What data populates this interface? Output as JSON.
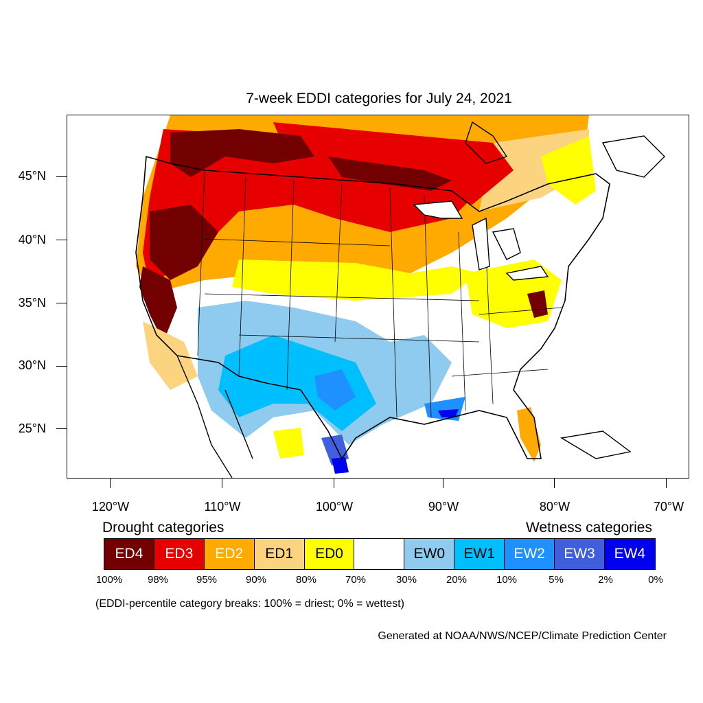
{
  "title": "7-week EDDI categories for July 24, 2021",
  "lat_labels": [
    "45°N",
    "40°N",
    "35°N",
    "30°N",
    "25°N"
  ],
  "lon_labels": [
    "120°W",
    "110°W",
    "100°W",
    "90°W",
    "80°W",
    "70°W"
  ],
  "drought_label": "Drought categories",
  "wetness_label": "Wetness categories",
  "categories": [
    {
      "label": "ED4",
      "color": "#730000",
      "text_color": "#ffffff"
    },
    {
      "label": "ED3",
      "color": "#e60000",
      "text_color": "#ffffff"
    },
    {
      "label": "ED2",
      "color": "#ffaa00",
      "text_color": "#ffffff"
    },
    {
      "label": "ED1",
      "color": "#fcd37f",
      "text_color": "#000000"
    },
    {
      "label": "ED0",
      "color": "#ffff00",
      "text_color": "#000000"
    },
    {
      "label": "",
      "color": "#ffffff",
      "text_color": "#000000"
    },
    {
      "label": "EW0",
      "color": "#8ecbef",
      "text_color": "#000000"
    },
    {
      "label": "EW1",
      "color": "#00bfff",
      "text_color": "#000000"
    },
    {
      "label": "EW2",
      "color": "#1e90ff",
      "text_color": "#ffffff"
    },
    {
      "label": "EW3",
      "color": "#3f5fdd",
      "text_color": "#ffffff"
    },
    {
      "label": "EW4",
      "color": "#0000ee",
      "text_color": "#ffffff"
    }
  ],
  "percentiles": [
    "100%",
    "98%",
    "95%",
    "90%",
    "80%",
    "70%",
    "30%",
    "20%",
    "10%",
    "5%",
    "2%",
    "0%"
  ],
  "breaks_note": "(EDDI-percentile category breaks: 100% = driest; 0% = wettest)",
  "credit": "Generated at NOAA/NWS/NCEP/Climate Prediction Center"
}
